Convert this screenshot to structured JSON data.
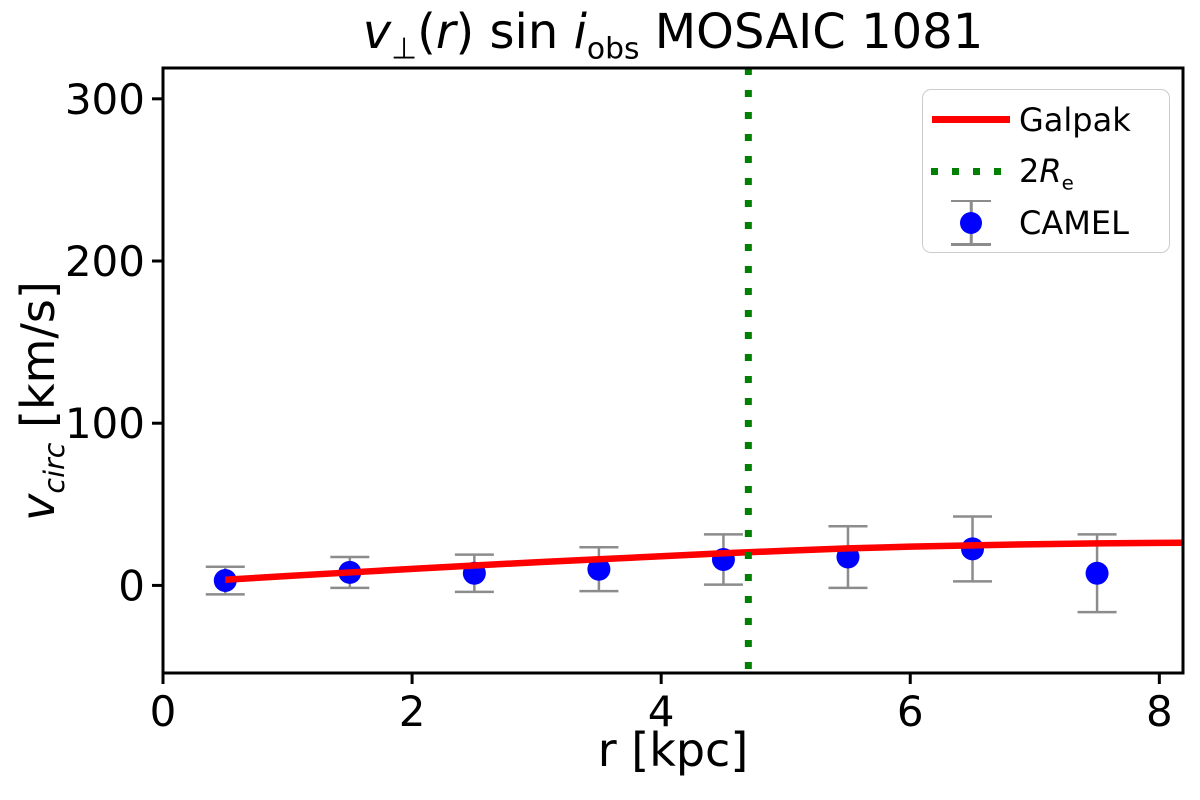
{
  "title": {
    "v": "v",
    "perp": "⊥",
    "open": "(",
    "r": "r",
    "close_sin": ") sin ",
    "i": "i",
    "obs": "obs",
    "name": " MOSAIC 1081"
  },
  "axes": {
    "xlabel": "r [kpc]",
    "ylabel_v": "v",
    "ylabel_sub": "circ",
    "ylabel_units": " [km/s]"
  },
  "legend": {
    "galpak": "Galpak",
    "re_prefix": "2",
    "re_R": "R",
    "re_sub": "e",
    "camel": "CAMEL"
  },
  "colors": {
    "galpak_line": "#ff0000",
    "re_line": "#008000",
    "camel_marker": "#0000ff",
    "error_bar": "#8c8c8c",
    "axis": "#000000",
    "legend_border": "#cccccc"
  },
  "chart_data": {
    "type": "line",
    "title": "v_perp(r) sin i_obs MOSAIC 1081",
    "xlabel": "r [kpc]",
    "ylabel": "v_circ [km/s]",
    "xlim": [
      0,
      8.19
    ],
    "ylim": [
      -54,
      319
    ],
    "xticks": [
      0,
      2,
      4,
      6,
      8
    ],
    "yticks": [
      0,
      100,
      200,
      300
    ],
    "grid": false,
    "legend_position": "upper right",
    "series": [
      {
        "name": "Galpak",
        "type": "line",
        "color": "#ff0000",
        "linewidth": 6.5,
        "x": [
          0.5,
          1.0,
          1.5,
          2.0,
          2.5,
          3.0,
          3.5,
          4.0,
          4.5,
          5.0,
          5.5,
          6.0,
          6.5,
          7.0,
          7.5,
          8.0,
          8.19
        ],
        "y": [
          3.5,
          5.8,
          8.0,
          10.2,
          12.3,
          14.3,
          16.1,
          18.0,
          19.8,
          21.4,
          22.8,
          23.9,
          24.7,
          25.4,
          25.9,
          26.2,
          26.3
        ]
      },
      {
        "name": "2Re",
        "type": "vline",
        "color": "#008000",
        "x": 4.7,
        "linestyle": "dotted",
        "linewidth": 7
      },
      {
        "name": "CAMEL",
        "type": "scatter",
        "color": "#0000ff",
        "ecolor": "#8c8c8c",
        "markersize": 23,
        "x": [
          0.5,
          1.5,
          2.5,
          3.5,
          4.5,
          5.5,
          6.5,
          7.5
        ],
        "y": [
          3,
          8,
          7.5,
          10,
          16,
          17.5,
          22.5,
          7.5
        ],
        "yerr": [
          8.5,
          9.5,
          11.5,
          13.5,
          15.5,
          19,
          20,
          24
        ]
      }
    ]
  }
}
